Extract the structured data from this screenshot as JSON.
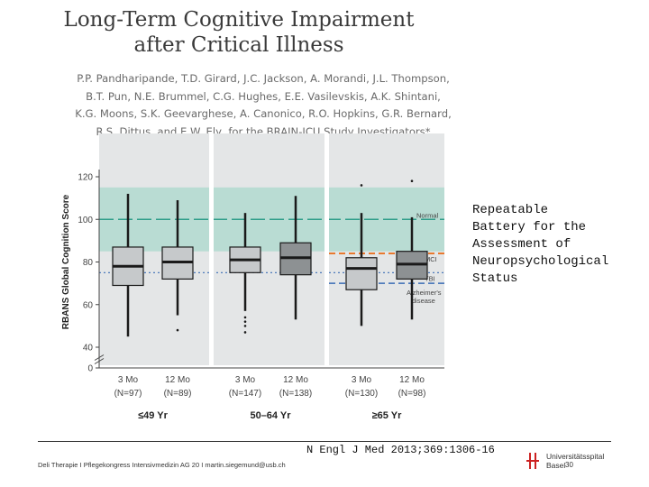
{
  "slide": {
    "title_line1": "Long-Term Cognitive Impairment",
    "title_line2": "after Critical Illness",
    "authors": [
      "P.P. Pandharipande, T.D. Girard, J.C. Jackson, A. Morandi, J.L. Thompson,",
      "B.T. Pun, N.E. Brummel, C.G. Hughes, E.E. Vasilevskis, A.K. Shintani,",
      "K.G. Moons, S.K. Geevarghese, A. Canonico, R.O. Hopkins, G.R. Bernard,",
      "R.S. Dittus, and E.W. Ely, for the BRAIN-ICU Study Investigators*"
    ],
    "side_note_lines": [
      "Repeatable",
      "Battery for the",
      "Assessment of",
      "Neuropsychological",
      "Status"
    ],
    "citation": "N Engl J Med 2013;369:1306-16",
    "footer_text": "Deli Therapie I Pflegekongress Intensivmedizin AG 20 I martin.siegemund@usb.ch",
    "logo_line1": "Universitätsspital",
    "logo_line2": "Basel",
    "page_number": "30"
  },
  "colors": {
    "panel_bg": "#e4e6e7",
    "normal_band": "#b9dcd3",
    "normal_line": "#2f9e8a",
    "mci_line": "#e8792f",
    "tbi_line": "#3a6db5",
    "box_light": "#c6c9cb",
    "box_dark": "#8d9193",
    "whisker": "#1a1a1a",
    "axis_text": "#444444"
  },
  "chart_data": {
    "type": "box",
    "title": "",
    "ylabel": "RBANS Global Cognition Score",
    "ylim": [
      0,
      130
    ],
    "yticks": [
      0,
      40,
      60,
      80,
      100,
      120
    ],
    "axis_break": "40",
    "normal_band": [
      85,
      115
    ],
    "reference_lines": [
      {
        "name": "Normal",
        "value": 100,
        "color": "#2f9e8a",
        "style": "long-dash"
      },
      {
        "name": "MCI",
        "value": 84,
        "color": "#e8792f",
        "style": "dash",
        "scope": "≥65 Yr"
      },
      {
        "name": "TBI",
        "value": 75,
        "color": "#3a6db5",
        "style": "dot"
      },
      {
        "name": "Alzheimer's disease",
        "value": 70,
        "color": "#3a6db5",
        "style": "dash",
        "scope": "≥65 Yr"
      }
    ],
    "groups": [
      {
        "label": "≤49 Yr",
        "boxes": [
          {
            "label": "3 Mo",
            "n": "(N=97)",
            "whisker_low": 45,
            "q1": 69,
            "median": 78,
            "q3": 87,
            "whisker_high": 112,
            "outliers": [],
            "shade": "light"
          },
          {
            "label": "12 Mo",
            "n": "(N=89)",
            "whisker_low": 55,
            "q1": 72,
            "median": 80,
            "q3": 87,
            "whisker_high": 109,
            "outliers": [
              48
            ],
            "shade": "light"
          }
        ]
      },
      {
        "label": "50–64 Yr",
        "boxes": [
          {
            "label": "3 Mo",
            "n": "(N=147)",
            "whisker_low": 57,
            "q1": 75,
            "median": 81,
            "q3": 87,
            "whisker_high": 103,
            "outliers": [
              47,
              50,
              52,
              54
            ],
            "shade": "light"
          },
          {
            "label": "12 Mo",
            "n": "(N=138)",
            "whisker_low": 53,
            "q1": 74,
            "median": 82,
            "q3": 89,
            "whisker_high": 111,
            "outliers": [],
            "shade": "dark"
          }
        ]
      },
      {
        "label": "≥65 Yr",
        "boxes": [
          {
            "label": "3 Mo",
            "n": "(N=130)",
            "whisker_low": 50,
            "q1": 67,
            "median": 77,
            "q3": 82,
            "whisker_high": 103,
            "outliers": [
              116
            ],
            "shade": "light"
          },
          {
            "label": "12 Mo",
            "n": "(N=98)",
            "whisker_low": 53,
            "q1": 72,
            "median": 79,
            "q3": 85,
            "whisker_high": 101,
            "outliers": [
              118
            ],
            "shade": "dark"
          }
        ]
      }
    ]
  }
}
